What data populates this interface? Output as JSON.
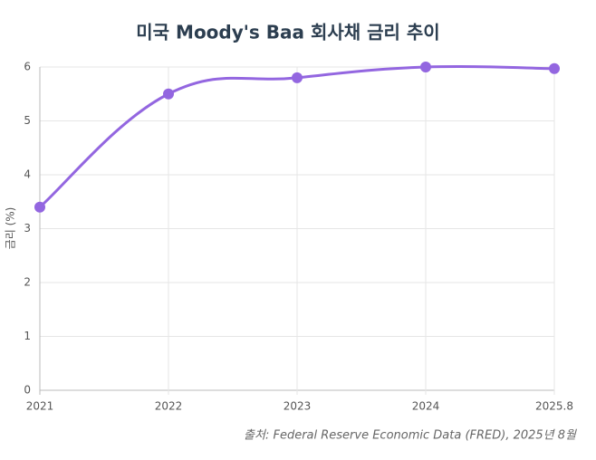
{
  "chart_data": {
    "type": "line",
    "title": "미국 Moody's Baa 회사채 금리 추이",
    "categories": [
      "2021",
      "2022",
      "2023",
      "2024",
      "2025.8"
    ],
    "series": [
      {
        "name": "Moody's Baa",
        "color": "#9366e0",
        "values": [
          3.4,
          5.5,
          5.8,
          6.0,
          5.97
        ]
      }
    ],
    "y_label": "금리 (%)",
    "ylim": [
      0,
      6
    ],
    "yticks": [
      0,
      1,
      2,
      3,
      4,
      5,
      6
    ],
    "grid": true,
    "source": "출처: Federal Reserve Economic Data (FRED), 2025년 8월"
  }
}
